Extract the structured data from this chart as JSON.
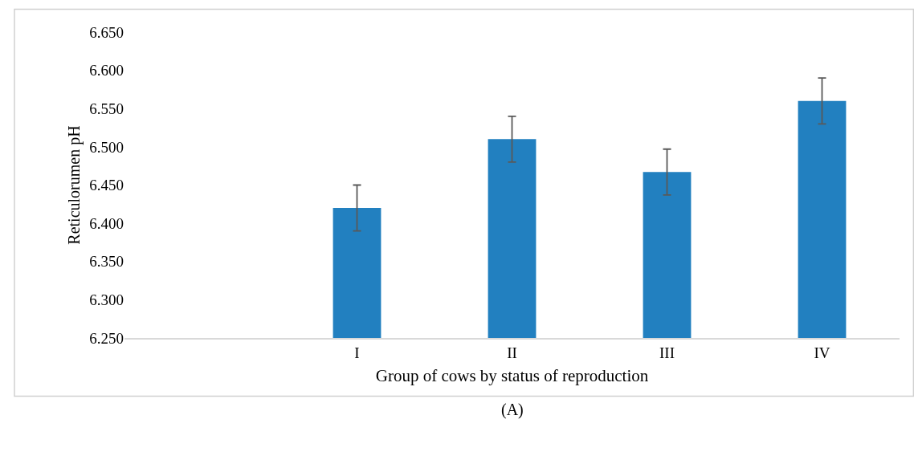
{
  "chart_data": {
    "type": "bar",
    "xlabel": "Group of cows by status of reproduction",
    "ylabel": "Reticulorumen pH",
    "categories": [
      null,
      "I",
      "II",
      "III",
      "IV"
    ],
    "values": [
      null,
      6.42,
      6.51,
      6.467,
      6.56
    ],
    "errors": [
      null,
      0.03,
      0.03,
      0.03,
      0.03
    ],
    "color": "#2280c0",
    "ylim": [
      6.25,
      6.65
    ],
    "yticks": [
      {
        "value": 6.25,
        "label": "6.250"
      },
      {
        "value": 6.3,
        "label": "6.300"
      },
      {
        "value": 6.35,
        "label": "6.350"
      },
      {
        "value": 6.4,
        "label": "6.400"
      },
      {
        "value": 6.45,
        "label": "6.450"
      },
      {
        "value": 6.5,
        "label": "6.500"
      },
      {
        "value": 6.55,
        "label": "6.550"
      },
      {
        "value": 6.6,
        "label": "6.600"
      },
      {
        "value": 6.65,
        "label": "6.650"
      }
    ],
    "grid": false,
    "legend": false,
    "annotations": [
      "(A)"
    ]
  }
}
